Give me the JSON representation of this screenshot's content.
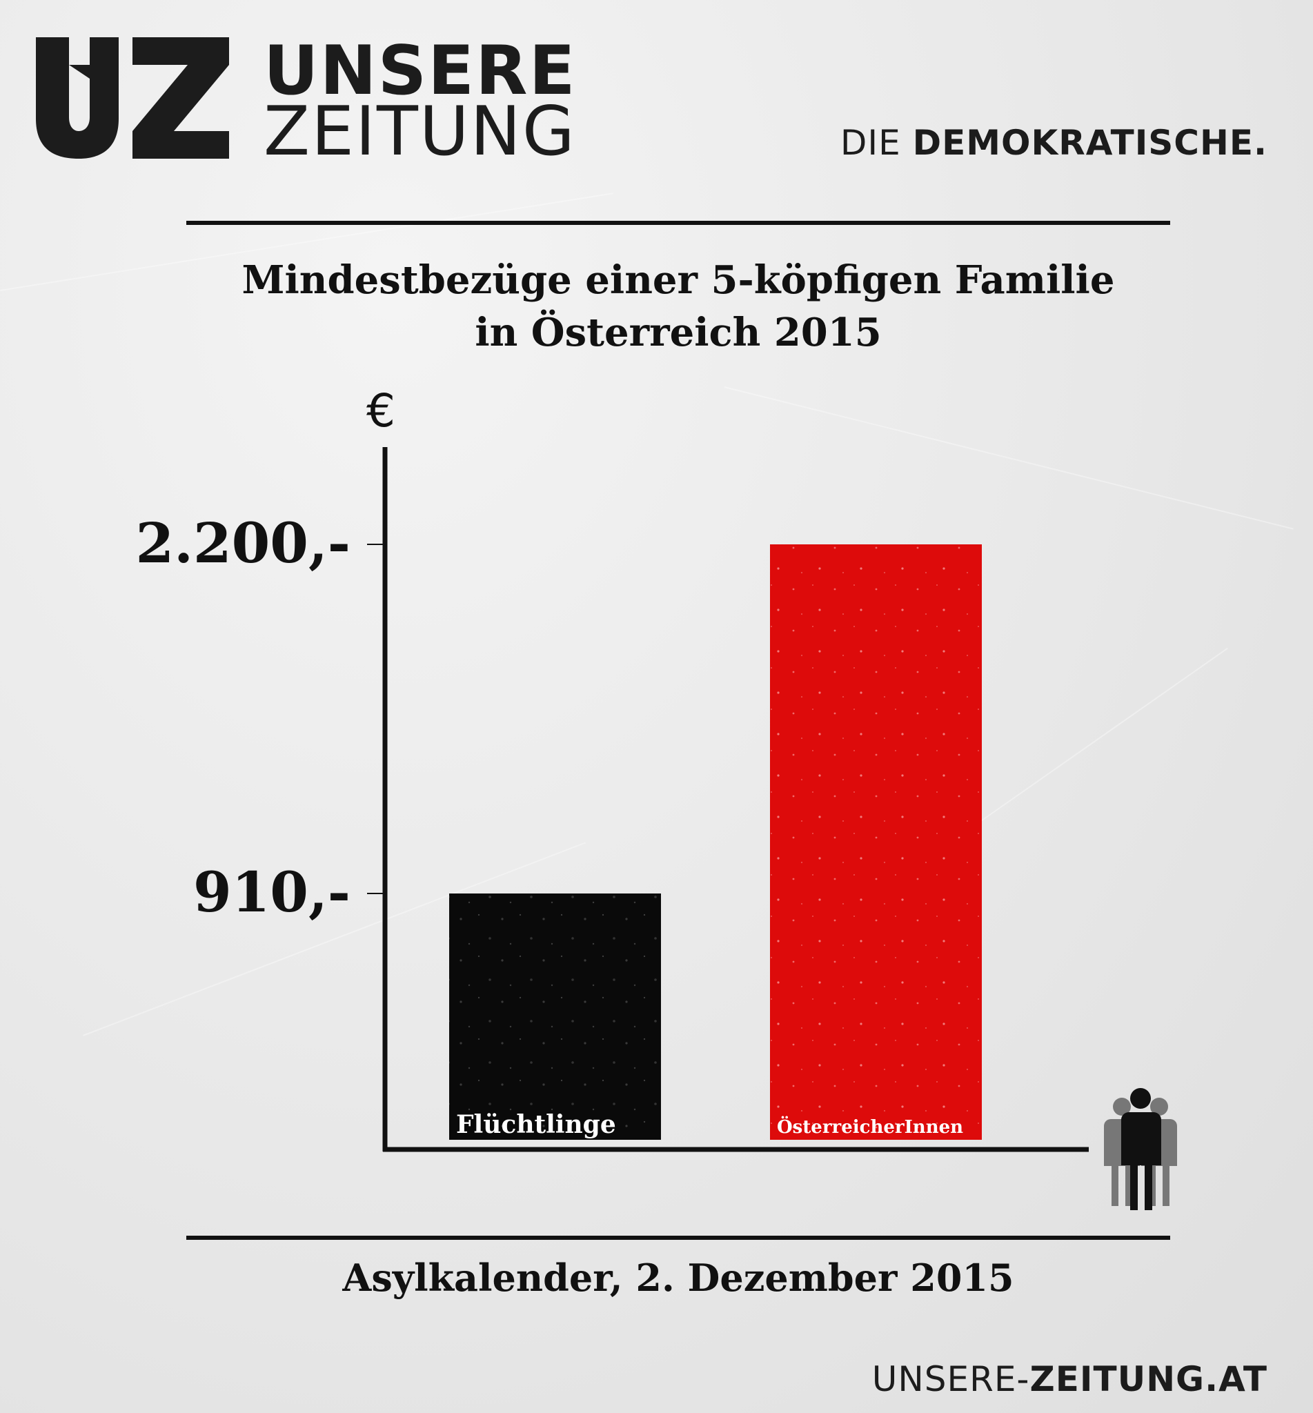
{
  "brand": {
    "logo_line1": "UNSERE",
    "logo_line2": "ZEITUNG",
    "tagline_prefix": "DIE ",
    "tagline_bold": "DEMOKRATISCHE.",
    "site_prefix": "UNSERE-",
    "site_bold": "ZEITUNG.AT"
  },
  "footer": {
    "caption": "Asylkalender, 2. Dezember 2015"
  },
  "chart_data": {
    "type": "bar",
    "title_line1": "Mindestbezüge einer 5-köpfigen Familie",
    "title_line2": "in Österreich 2015",
    "ylabel": "€",
    "xlabel": "",
    "ylim": [
      0,
      2200
    ],
    "grid": false,
    "categories": [
      "Flüchtlinge",
      "ÖsterreicherInnen"
    ],
    "values": [
      910,
      2200
    ],
    "value_labels": [
      "910,-",
      "2.200,-"
    ],
    "bar_colors": [
      "#0a0a0a",
      "#dd0b0b"
    ],
    "x_axis_icon": "family-group-icon"
  }
}
